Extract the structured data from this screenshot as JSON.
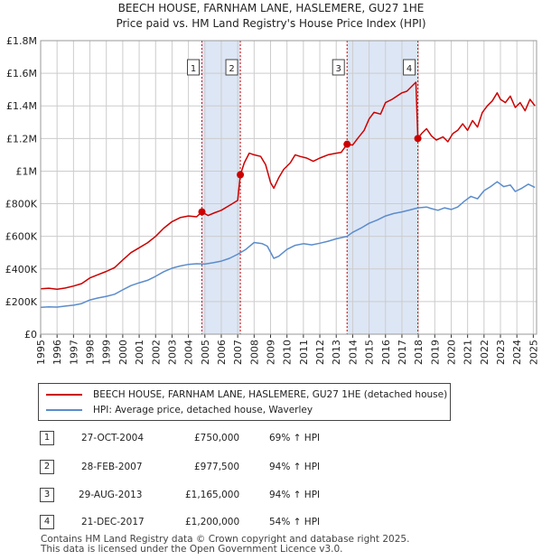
{
  "title_line1": "BEECH HOUSE, FARNHAM LANE, HASLEMERE, GU27 1HE",
  "title_line2": "Price paid vs. HM Land Registry's House Price Index (HPI)",
  "colors": {
    "property": "#cc0000",
    "hpi": "#5b8ccc",
    "shade": "#dde6f5",
    "grid": "#cccccc"
  },
  "chart_data": {
    "type": "line",
    "title": "BEECH HOUSE, FARNHAM LANE, HASLEMERE, GU27 1HE — Price paid vs. HM Land Registry's House Price Index (HPI)",
    "xlim": [
      1995,
      2025.2
    ],
    "ylim": [
      0,
      1800000
    ],
    "x_ticks": [
      "1995",
      "1996",
      "1997",
      "1998",
      "1999",
      "2000",
      "2001",
      "2002",
      "2003",
      "2004",
      "2005",
      "2006",
      "2007",
      "2008",
      "2009",
      "2010",
      "2011",
      "2012",
      "2013",
      "2014",
      "2015",
      "2016",
      "2017",
      "2018",
      "2019",
      "2020",
      "2021",
      "2022",
      "2023",
      "2024",
      "2025"
    ],
    "y_ticks": [
      {
        "value": 0,
        "label": "£0"
      },
      {
        "value": 200000,
        "label": "£200K"
      },
      {
        "value": 400000,
        "label": "£400K"
      },
      {
        "value": 600000,
        "label": "£600K"
      },
      {
        "value": 800000,
        "label": "£800K"
      },
      {
        "value": 1000000,
        "label": "£1M"
      },
      {
        "value": 1200000,
        "label": "£1.2M"
      },
      {
        "value": 1400000,
        "label": "£1.4M"
      },
      {
        "value": 1600000,
        "label": "£1.6M"
      },
      {
        "value": 1800000,
        "label": "£1.8M"
      }
    ],
    "shaded_periods": [
      [
        2004.82,
        2007.16
      ],
      [
        2013.66,
        2017.97
      ]
    ],
    "series": [
      {
        "name": "BEECH HOUSE, FARNHAM LANE, HASLEMERE, GU27 1HE (detached house)",
        "color": "#cc0000",
        "points": [
          [
            1995.0,
            278000
          ],
          [
            1995.5,
            282000
          ],
          [
            1996.0,
            276000
          ],
          [
            1996.5,
            283000
          ],
          [
            1997.0,
            295000
          ],
          [
            1997.5,
            310000
          ],
          [
            1998.0,
            345000
          ],
          [
            1998.5,
            365000
          ],
          [
            1999.0,
            385000
          ],
          [
            1999.5,
            408000
          ],
          [
            2000.0,
            455000
          ],
          [
            2000.5,
            500000
          ],
          [
            2001.0,
            530000
          ],
          [
            2001.5,
            560000
          ],
          [
            2002.0,
            600000
          ],
          [
            2002.5,
            650000
          ],
          [
            2003.0,
            690000
          ],
          [
            2003.5,
            715000
          ],
          [
            2004.0,
            725000
          ],
          [
            2004.5,
            720000
          ],
          [
            2004.82,
            750000
          ],
          [
            2005.2,
            728000
          ],
          [
            2005.6,
            745000
          ],
          [
            2006.0,
            760000
          ],
          [
            2006.5,
            790000
          ],
          [
            2007.0,
            820000
          ],
          [
            2007.16,
            977500
          ],
          [
            2007.4,
            1050000
          ],
          [
            2007.7,
            1110000
          ],
          [
            2008.0,
            1100000
          ],
          [
            2008.4,
            1090000
          ],
          [
            2008.7,
            1040000
          ],
          [
            2009.0,
            930000
          ],
          [
            2009.2,
            895000
          ],
          [
            2009.5,
            960000
          ],
          [
            2009.8,
            1010000
          ],
          [
            2010.2,
            1050000
          ],
          [
            2010.5,
            1100000
          ],
          [
            2010.8,
            1090000
          ],
          [
            2011.2,
            1080000
          ],
          [
            2011.6,
            1060000
          ],
          [
            2012.0,
            1080000
          ],
          [
            2012.5,
            1100000
          ],
          [
            2013.0,
            1110000
          ],
          [
            2013.3,
            1115000
          ],
          [
            2013.66,
            1165000
          ],
          [
            2014.0,
            1160000
          ],
          [
            2014.3,
            1200000
          ],
          [
            2014.7,
            1250000
          ],
          [
            2015.0,
            1320000
          ],
          [
            2015.3,
            1360000
          ],
          [
            2015.7,
            1350000
          ],
          [
            2016.0,
            1420000
          ],
          [
            2016.4,
            1440000
          ],
          [
            2016.7,
            1460000
          ],
          [
            2017.0,
            1480000
          ],
          [
            2017.3,
            1490000
          ],
          [
            2017.6,
            1520000
          ],
          [
            2017.85,
            1545000
          ],
          [
            2017.97,
            1200000
          ],
          [
            2018.2,
            1230000
          ],
          [
            2018.5,
            1260000
          ],
          [
            2018.8,
            1215000
          ],
          [
            2019.1,
            1190000
          ],
          [
            2019.5,
            1210000
          ],
          [
            2019.8,
            1180000
          ],
          [
            2020.1,
            1230000
          ],
          [
            2020.4,
            1250000
          ],
          [
            2020.7,
            1290000
          ],
          [
            2021.0,
            1250000
          ],
          [
            2021.3,
            1310000
          ],
          [
            2021.6,
            1270000
          ],
          [
            2021.9,
            1360000
          ],
          [
            2022.2,
            1400000
          ],
          [
            2022.5,
            1430000
          ],
          [
            2022.8,
            1480000
          ],
          [
            2023.0,
            1440000
          ],
          [
            2023.3,
            1420000
          ],
          [
            2023.6,
            1460000
          ],
          [
            2023.9,
            1390000
          ],
          [
            2024.2,
            1420000
          ],
          [
            2024.5,
            1370000
          ],
          [
            2024.8,
            1440000
          ],
          [
            2025.1,
            1400000
          ]
        ]
      },
      {
        "name": "HPI: Average price, detached house, Waverley",
        "color": "#5b8ccc",
        "points": [
          [
            1995.0,
            165000
          ],
          [
            1995.5,
            168000
          ],
          [
            1996.0,
            166000
          ],
          [
            1996.5,
            172000
          ],
          [
            1997.0,
            178000
          ],
          [
            1997.5,
            188000
          ],
          [
            1998.0,
            210000
          ],
          [
            1998.5,
            222000
          ],
          [
            1999.0,
            232000
          ],
          [
            1999.5,
            245000
          ],
          [
            2000.0,
            272000
          ],
          [
            2000.5,
            298000
          ],
          [
            2001.0,
            315000
          ],
          [
            2001.5,
            330000
          ],
          [
            2002.0,
            355000
          ],
          [
            2002.5,
            383000
          ],
          [
            2003.0,
            405000
          ],
          [
            2003.5,
            418000
          ],
          [
            2004.0,
            428000
          ],
          [
            2004.5,
            432000
          ],
          [
            2005.0,
            430000
          ],
          [
            2005.5,
            438000
          ],
          [
            2006.0,
            448000
          ],
          [
            2006.5,
            465000
          ],
          [
            2007.0,
            490000
          ],
          [
            2007.5,
            520000
          ],
          [
            2008.0,
            562000
          ],
          [
            2008.5,
            555000
          ],
          [
            2008.8,
            540000
          ],
          [
            2009.2,
            465000
          ],
          [
            2009.5,
            478000
          ],
          [
            2010.0,
            520000
          ],
          [
            2010.5,
            545000
          ],
          [
            2011.0,
            555000
          ],
          [
            2011.5,
            548000
          ],
          [
            2012.0,
            558000
          ],
          [
            2012.5,
            570000
          ],
          [
            2013.0,
            585000
          ],
          [
            2013.66,
            600000
          ],
          [
            2014.0,
            625000
          ],
          [
            2014.5,
            650000
          ],
          [
            2015.0,
            680000
          ],
          [
            2015.5,
            700000
          ],
          [
            2016.0,
            725000
          ],
          [
            2016.5,
            740000
          ],
          [
            2017.0,
            750000
          ],
          [
            2017.5,
            762000
          ],
          [
            2017.97,
            775000
          ],
          [
            2018.5,
            780000
          ],
          [
            2018.8,
            770000
          ],
          [
            2019.2,
            760000
          ],
          [
            2019.6,
            775000
          ],
          [
            2020.0,
            765000
          ],
          [
            2020.4,
            780000
          ],
          [
            2020.8,
            815000
          ],
          [
            2021.2,
            845000
          ],
          [
            2021.6,
            830000
          ],
          [
            2022.0,
            880000
          ],
          [
            2022.4,
            905000
          ],
          [
            2022.8,
            935000
          ],
          [
            2023.2,
            905000
          ],
          [
            2023.6,
            915000
          ],
          [
            2023.9,
            875000
          ],
          [
            2024.3,
            895000
          ],
          [
            2024.7,
            920000
          ],
          [
            2025.1,
            900000
          ]
        ]
      }
    ],
    "markers": [
      {
        "label": "1",
        "x": 2004.82,
        "y": 750000
      },
      {
        "label": "2",
        "x": 2007.16,
        "y": 977500
      },
      {
        "label": "3",
        "x": 2013.66,
        "y": 1165000
      },
      {
        "label": "4",
        "x": 2017.97,
        "y": 1200000
      }
    ]
  },
  "legend": [
    {
      "label": "BEECH HOUSE, FARNHAM LANE, HASLEMERE, GU27 1HE (detached house)",
      "color": "#cc0000"
    },
    {
      "label": "HPI: Average price, detached house, Waverley",
      "color": "#5b8ccc"
    }
  ],
  "transactions": [
    {
      "num": "1",
      "date": "27-OCT-2004",
      "price": "£750,000",
      "hpi": "69% ↑ HPI"
    },
    {
      "num": "2",
      "date": "28-FEB-2007",
      "price": "£977,500",
      "hpi": "94% ↑ HPI"
    },
    {
      "num": "3",
      "date": "29-AUG-2013",
      "price": "£1,165,000",
      "hpi": "94% ↑ HPI"
    },
    {
      "num": "4",
      "date": "21-DEC-2017",
      "price": "£1,200,000",
      "hpi": "54% ↑ HPI"
    }
  ],
  "footer_line1": "Contains HM Land Registry data © Crown copyright and database right 2025.",
  "footer_line2": "This data is licensed under the Open Government Licence v3.0."
}
